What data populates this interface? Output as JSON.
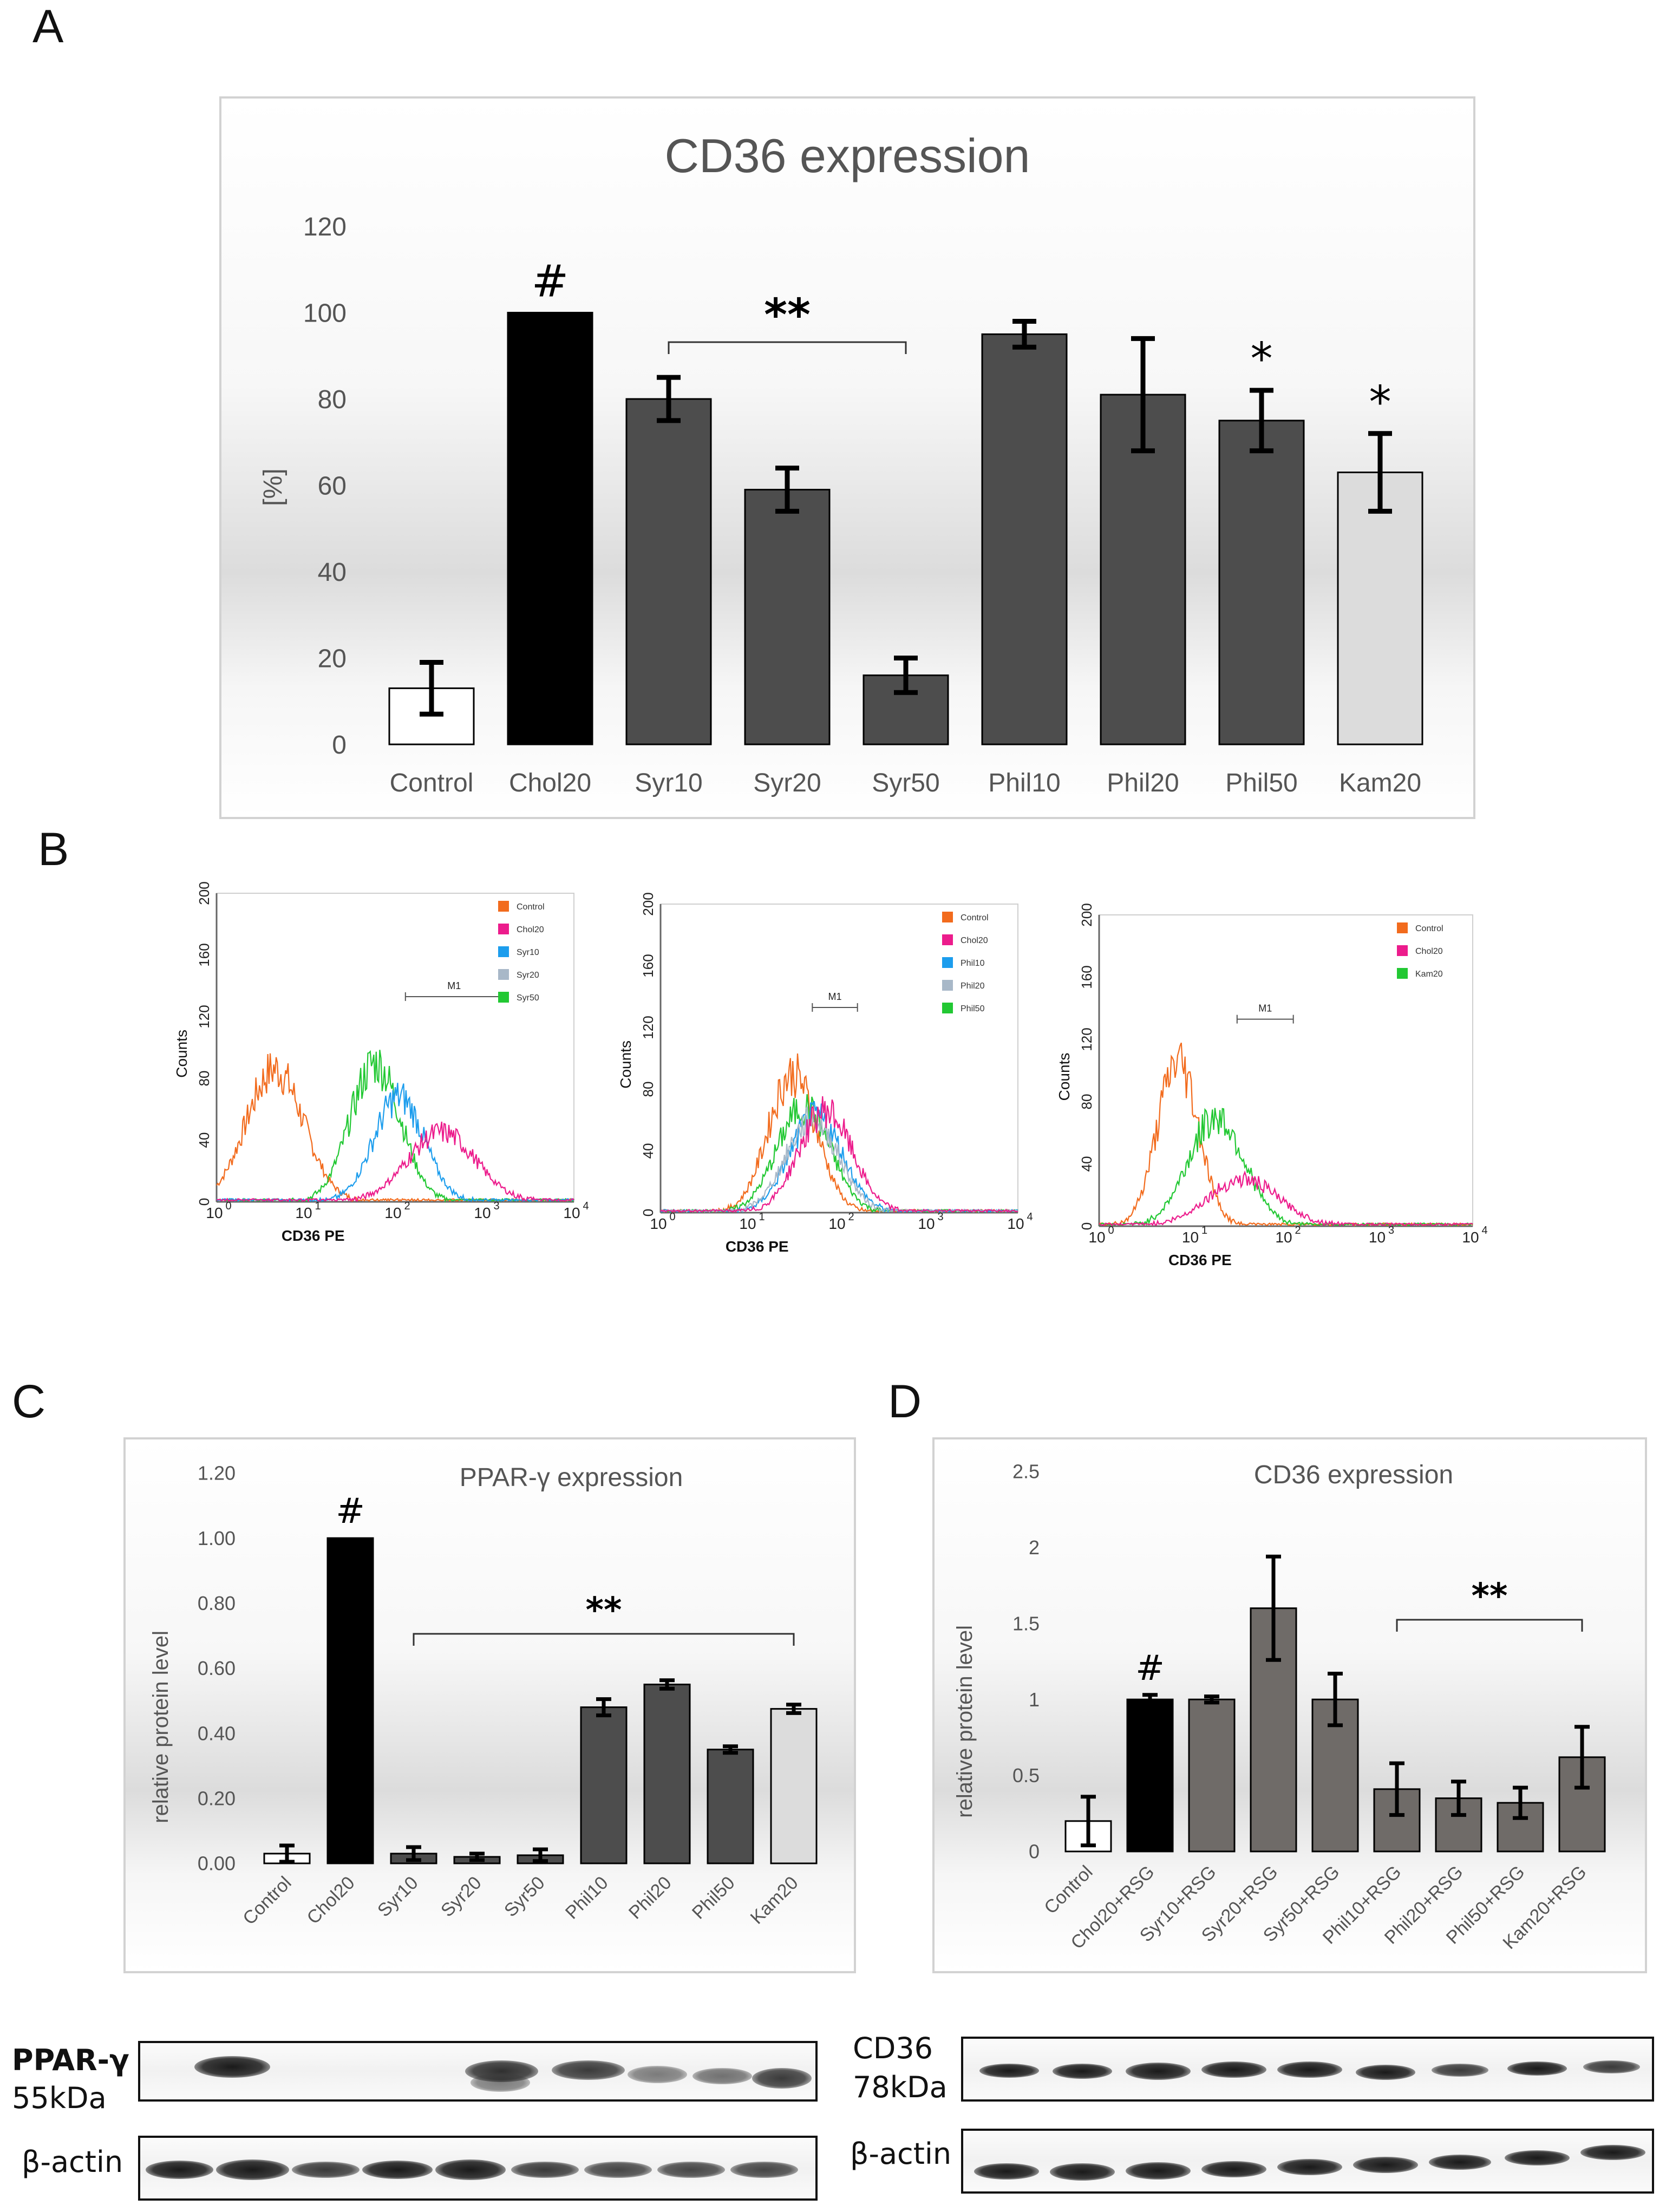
{
  "panel_labels": {
    "a": "A",
    "b": "B",
    "c": "C",
    "d": "D"
  },
  "colors": {
    "control": "#ffffff",
    "chol": "#000000",
    "syr": "#4d4d4d",
    "phil": "#4d4d4d",
    "kam": "#dcdcdc",
    "d_treat": "#6f6b68",
    "fc_control": "#f26b1d",
    "fc_chol": "#ec1c8c",
    "fc_syr10": "#1c9ded",
    "fc_syr20": "#a8b8c8",
    "fc_syr50": "#22c833"
  },
  "chart_data": [
    {
      "id": "A",
      "type": "bar",
      "title": "CD36 expression",
      "ylabel": "[%]",
      "xlabel": "",
      "ylim": [
        0,
        120
      ],
      "yticks": [
        "120",
        "100",
        "80",
        "60",
        "40",
        "20",
        "0"
      ],
      "categories": [
        "Control",
        "Chol20",
        "Syr10",
        "Syr20",
        "Syr50",
        "Phil10",
        "Phil20",
        "Phil50",
        "Kam20"
      ],
      "values": [
        13,
        100,
        80,
        59,
        16,
        95,
        81,
        75,
        63
      ],
      "errors": [
        6,
        0,
        5,
        5,
        4,
        3,
        13,
        7,
        9
      ],
      "annotations": [
        {
          "text": "#",
          "category": "Chol20"
        },
        {
          "text": "**",
          "span": [
            "Syr10",
            "Syr50"
          ]
        },
        {
          "text": "*",
          "category": "Phil50"
        },
        {
          "text": "*",
          "category": "Kam20"
        }
      ]
    },
    {
      "id": "B",
      "type": "line",
      "xlabel": "CD36 PE",
      "ylabel": "Counts",
      "ylim": [
        0,
        200
      ],
      "yticks": [
        "0",
        "40",
        "80",
        "120",
        "160",
        "200"
      ],
      "xscale": "log",
      "xlim": [
        1,
        10000
      ],
      "xticks_base": [
        "10",
        "10",
        "10",
        "10",
        "10"
      ],
      "xticks_exp": [
        "0",
        "1",
        "2",
        "3",
        "4"
      ],
      "gate": "M1",
      "histograms": [
        {
          "legend": [
            "Control",
            "Chol20",
            "Syr10",
            "Syr20",
            "Syr50"
          ],
          "series": [
            {
              "name": "Control",
              "peak_x": 4.5,
              "peak_y": 86,
              "width": 0.32
            },
            {
              "name": "Syr50",
              "peak_x": 60,
              "peak_y": 90,
              "width": 0.28
            },
            {
              "name": "Syr10",
              "peak_x": 110,
              "peak_y": 68,
              "width": 0.28
            },
            {
              "name": "Chol20",
              "peak_x": 330,
              "peak_y": 45,
              "width": 0.38
            }
          ],
          "gate_range": [
            130,
            1600
          ]
        },
        {
          "legend": [
            "Control",
            "Chol20",
            "Phil10",
            "Phil20",
            "Phil50"
          ],
          "series": [
            {
              "name": "Control",
              "peak_x": 30,
              "peak_y": 90,
              "width": 0.27
            },
            {
              "name": "Phil50",
              "peak_x": 40,
              "peak_y": 68,
              "width": 0.3
            },
            {
              "name": "Phil10",
              "peak_x": 55,
              "peak_y": 62,
              "width": 0.3
            },
            {
              "name": "Phil20",
              "peak_x": 50,
              "peak_y": 60,
              "width": 0.3
            },
            {
              "name": "Chol20",
              "peak_x": 70,
              "peak_y": 66,
              "width": 0.3
            }
          ],
          "gate_range": [
            50,
            160
          ]
        },
        {
          "legend": [
            "Control",
            "Chol20",
            "Kam20"
          ],
          "series": [
            {
              "name": "Control",
              "peak_x": 7,
              "peak_y": 106,
              "width": 0.22
            },
            {
              "name": "Kam20",
              "peak_x": 18,
              "peak_y": 70,
              "width": 0.3
            },
            {
              "name": "Chol20",
              "peak_x": 35,
              "peak_y": 30,
              "width": 0.38
            }
          ],
          "gate_range": [
            30,
            120
          ]
        }
      ]
    },
    {
      "id": "C",
      "type": "bar",
      "title": "PPAR-γ expression",
      "ylabel": "relative protein level",
      "ylim": [
        0,
        1.2
      ],
      "yticks": [
        "1.20",
        "1.00",
        "0.80",
        "0.60",
        "0.40",
        "0.20",
        "0.00"
      ],
      "categories": [
        "Control",
        "Chol20",
        "Syr10",
        "Syr20",
        "Syr50",
        "Phil10",
        "Phil20",
        "Phil50",
        "Kam20"
      ],
      "values": [
        0.03,
        1.0,
        0.03,
        0.02,
        0.025,
        0.48,
        0.55,
        0.35,
        0.475
      ],
      "errors": [
        0.025,
        0,
        0.02,
        0.01,
        0.018,
        0.025,
        0.013,
        0.01,
        0.013
      ],
      "annotations": [
        {
          "text": "#",
          "category": "Chol20"
        },
        {
          "text": "**",
          "span": [
            "Syr10",
            "Kam20"
          ]
        }
      ]
    },
    {
      "id": "D",
      "type": "bar",
      "title": "CD36 expression",
      "ylabel": "relative protein level",
      "ylim": [
        0,
        2.5
      ],
      "yticks": [
        "2.5",
        "2",
        "1.5",
        "1",
        "0.5",
        "0"
      ],
      "categories": [
        "Control",
        "Chol20+RSG",
        "Syr10+RSG",
        "Syr20+RSG",
        "Syr50+RSG",
        "Phil10+RSG",
        "Phil20+RSG",
        "Phil50+RSG",
        "Kam20+RSG"
      ],
      "values": [
        0.2,
        1.0,
        1.0,
        1.6,
        1.0,
        0.41,
        0.35,
        0.32,
        0.62
      ],
      "errors": [
        0.16,
        0.03,
        0.02,
        0.34,
        0.17,
        0.17,
        0.11,
        0.1,
        0.2
      ],
      "annotations": [
        {
          "text": "#",
          "category": "Chol20+RSG"
        },
        {
          "text": "**",
          "span": [
            "Phil10+RSG",
            "Kam20+RSG"
          ]
        }
      ]
    }
  ],
  "blots": {
    "ppar_label": "PPAR-γ",
    "ppar_size": "55kDa",
    "actin_label": "β-actin",
    "cd36_label": "CD36",
    "cd36_size": "78kDa"
  }
}
